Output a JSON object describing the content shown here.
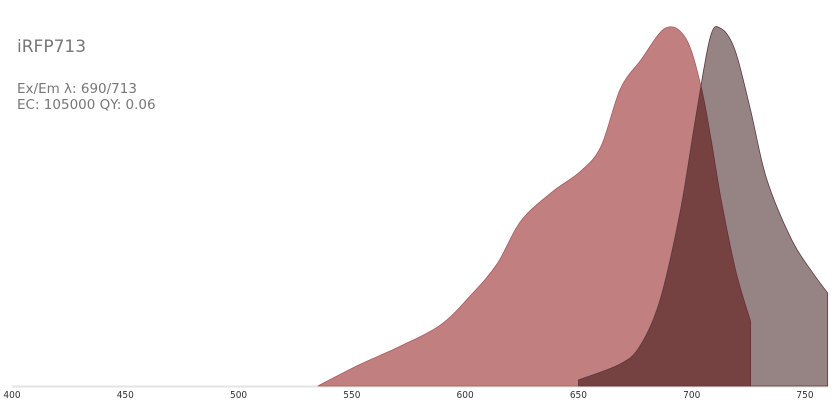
{
  "protein": {
    "name": "iRFP713",
    "exem_label": "Ex/Em λ: 690/713",
    "ec_qy_label": "EC: 105000  QY: 0.06"
  },
  "chart_data": {
    "type": "area",
    "title": "iRFP713",
    "xlabel": "",
    "ylabel": "",
    "xlim": [
      400,
      760
    ],
    "ylim": [
      0,
      1
    ],
    "x_ticks": [
      400,
      450,
      500,
      550,
      600,
      650,
      700,
      750
    ],
    "grid": false,
    "legend": "none",
    "series": [
      {
        "kind": "excitation",
        "color": "#c17f7f",
        "x": [
          535,
          553.5,
          571,
          589,
          602,
          614,
          624.5,
          638,
          651,
          660,
          668.5,
          677.5,
          688.5,
          697.5,
          704,
          708.5,
          713,
          719.5,
          726
        ],
        "y": [
          0,
          0.06,
          0.11,
          0.17,
          0.25,
          0.34,
          0.46,
          0.54,
          0.6,
          0.67,
          0.83,
          0.91,
          1.0,
          0.97,
          0.84,
          0.69,
          0.52,
          0.32,
          0.18
        ]
      },
      {
        "kind": "emission",
        "color": "#968084",
        "x": [
          650,
          668,
          677,
          686,
          695,
          701.5,
          708,
          712.5,
          719,
          726,
          733,
          744,
          753,
          760
        ],
        "y": [
          0.017,
          0.06,
          0.11,
          0.24,
          0.49,
          0.74,
          0.97,
          1.0,
          0.94,
          0.77,
          0.58,
          0.41,
          0.32,
          0.26
        ]
      }
    ]
  }
}
